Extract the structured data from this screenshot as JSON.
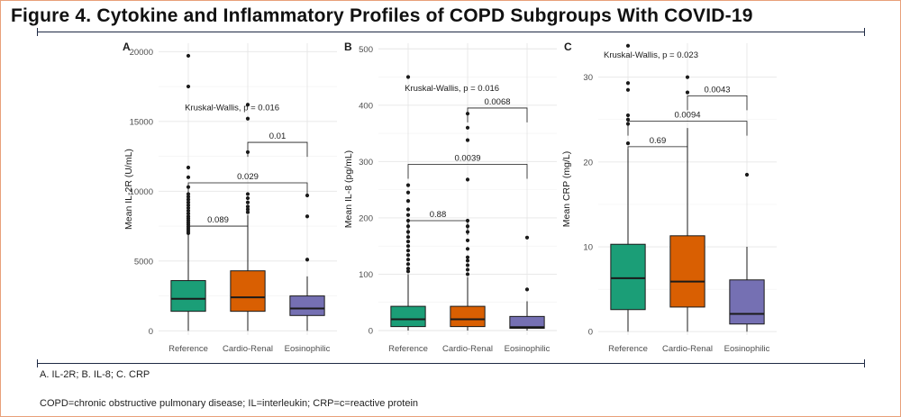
{
  "figure": {
    "title": "Figure 4. Cytokine and Inflammatory Profiles of COPD Subgroups With COVID-19",
    "caption_panels": "A. IL-2R; B. IL-8; C. CRP",
    "caption_abbrev": "COPD=chronic obstructive pulmonary disease; IL=interleukin; CRP=c=reactive protein"
  },
  "colors": {
    "Reference": "#1b9e77",
    "Cardio-Renal": "#d95f02",
    "Eosinophilic": "#7570b3",
    "frame": "#e8a07a",
    "rule": "#1f2a44"
  },
  "chart_data": [
    {
      "type": "box",
      "panel_label": "A",
      "ylabel": "Mean IL-2R (U/mL)",
      "ylim": [
        -300,
        20600
      ],
      "yticks": [
        0,
        5000,
        10000,
        15000,
        20000
      ],
      "ytick_labels": [
        "0",
        "5000",
        "10000",
        "15000",
        "20000"
      ],
      "categories": [
        "Reference",
        "Cardio-Renal",
        "Eosinophilic"
      ],
      "boxes": [
        {
          "group": "Reference",
          "min": 0,
          "q1": 1400,
          "median": 2300,
          "q3": 3600,
          "max": 6900,
          "outliers": [
            7000,
            7150,
            7300,
            7450,
            7600,
            7750,
            7900,
            8050,
            8200,
            8400,
            8600,
            8800,
            9000,
            9200,
            9400,
            9600,
            9800,
            10300,
            11000,
            11700,
            17500,
            19700
          ]
        },
        {
          "group": "Cardio-Renal",
          "min": 0,
          "q1": 1400,
          "median": 2400,
          "q3": 4300,
          "max": 8300,
          "outliers": [
            8500,
            8700,
            8900,
            9200,
            9500,
            9800,
            12800,
            15200,
            16200
          ]
        },
        {
          "group": "Eosinophilic",
          "min": 0,
          "q1": 1100,
          "median": 1600,
          "q3": 2500,
          "max": 3900,
          "outliers": [
            5100,
            8200,
            9700
          ]
        }
      ],
      "annotations": {
        "kruskal": {
          "text": "Kruskal-Wallis, p = 0.016",
          "x": 1.35,
          "y": 15800
        },
        "brackets": [
          {
            "from": 1,
            "to": 2,
            "y": 7500,
            "label": "0.089"
          },
          {
            "from": 1,
            "to": 3,
            "y": 10600,
            "label": "0.029"
          },
          {
            "from": 2,
            "to": 3,
            "y": 13500,
            "label": "0.01"
          }
        ]
      }
    },
    {
      "type": "box",
      "panel_label": "B",
      "ylabel": "Mean IL-8 (pg/mL)",
      "ylim": [
        -8,
        510
      ],
      "yticks": [
        0,
        100,
        200,
        300,
        400,
        500
      ],
      "ytick_labels": [
        "0",
        "100",
        "200",
        "300",
        "400",
        "500"
      ],
      "categories": [
        "Reference",
        "Cardio-Renal",
        "Eosinophilic"
      ],
      "boxes": [
        {
          "group": "Reference",
          "min": 0,
          "q1": 7,
          "median": 20,
          "q3": 43,
          "max": 100,
          "outliers": [
            105,
            110,
            118,
            126,
            134,
            142,
            150,
            158,
            166,
            175,
            185,
            195,
            205,
            215,
            230,
            245,
            258,
            450
          ]
        },
        {
          "group": "Cardio-Renal",
          "min": 0,
          "q1": 7,
          "median": 20,
          "q3": 43,
          "max": 95,
          "outliers": [
            100,
            108,
            116,
            124,
            130,
            145,
            160,
            175,
            185,
            195,
            268,
            338,
            360,
            385
          ]
        },
        {
          "group": "Eosinophilic",
          "min": 0,
          "q1": 4,
          "median": 6,
          "q3": 25,
          "max": 52,
          "outliers": [
            73,
            165
          ]
        }
      ],
      "annotations": {
        "kruskal": {
          "text": "Kruskal-Wallis, p = 0.016",
          "x": 1.35,
          "y": 425
        },
        "brackets": [
          {
            "from": 1,
            "to": 2,
            "y": 195,
            "label": "0.88"
          },
          {
            "from": 1,
            "to": 3,
            "y": 295,
            "label": "0.0039"
          },
          {
            "from": 2,
            "to": 3,
            "y": 395,
            "label": "0.0068"
          }
        ]
      }
    },
    {
      "type": "box",
      "panel_label": "C",
      "ylabel": "Mean CRP (mg/L)",
      "ylim": [
        -0.4,
        34
      ],
      "yticks": [
        0,
        10,
        20,
        30
      ],
      "ytick_labels": [
        "0",
        "10",
        "20",
        "30"
      ],
      "categories": [
        "Reference",
        "Cardio-Renal",
        "Eosinophilic"
      ],
      "boxes": [
        {
          "group": "Reference",
          "min": 0,
          "q1": 2.6,
          "median": 6.3,
          "q3": 10.3,
          "max": 21.5,
          "outliers": [
            22.2,
            24.5,
            25.0,
            25.5,
            28.5,
            29.3,
            33.7
          ]
        },
        {
          "group": "Cardio-Renal",
          "min": 0,
          "q1": 2.9,
          "median": 5.9,
          "q3": 11.3,
          "max": 24.0,
          "outliers": [
            28.2,
            30.0
          ]
        },
        {
          "group": "Eosinophilic",
          "min": 0,
          "q1": 0.9,
          "median": 2.1,
          "q3": 6.1,
          "max": 10.0,
          "outliers": [
            18.5
          ]
        }
      ],
      "annotations": {
        "kruskal": {
          "text": "Kruskal-Wallis, p = 0.023",
          "x": 1.0,
          "y": 32.3
        },
        "brackets": [
          {
            "from": 1,
            "to": 2,
            "y": 21.8,
            "label": "0.69"
          },
          {
            "from": 1,
            "to": 3,
            "y": 24.8,
            "label": "0.0094"
          },
          {
            "from": 2,
            "to": 3,
            "y": 27.8,
            "label": "0.0043"
          }
        ]
      }
    }
  ]
}
